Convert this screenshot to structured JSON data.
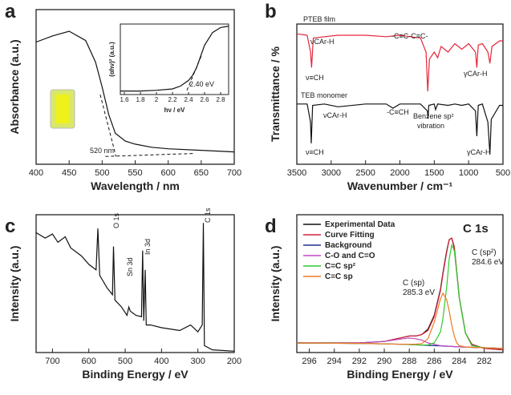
{
  "chart_data": [
    {
      "type": "line",
      "panel_label": "a",
      "xlabel": "Wavelength / nm",
      "ylabel": "Absorbance (a.u.)",
      "xlim": [
        400,
        700
      ],
      "ylim": [
        0,
        1
      ],
      "xticks": [
        400,
        450,
        500,
        550,
        600,
        650,
        700
      ],
      "series": [
        {
          "color": "#111111",
          "x": [
            400,
            425,
            450,
            475,
            490,
            500,
            510,
            520,
            535,
            550,
            575,
            600,
            650,
            700
          ],
          "values": [
            0.79,
            0.83,
            0.86,
            0.8,
            0.66,
            0.5,
            0.32,
            0.2,
            0.15,
            0.13,
            0.11,
            0.1,
            0.09,
            0.08
          ]
        }
      ],
      "guides": [
        {
          "x": [
            497,
            521
          ],
          "values": [
            0.45,
            0.05
          ]
        },
        {
          "x": [
            505,
            640
          ],
          "values": [
            0.05,
            0.07
          ]
        }
      ],
      "annotations": [
        "520 nm"
      ]
    },
    {
      "type": "line",
      "xlabel": "hν / eV",
      "ylabel": "(αhν)² (a.u.)",
      "xlim": [
        1.55,
        2.9
      ],
      "ylim": [
        0,
        1
      ],
      "xticks": [
        1.6,
        1.8,
        2.0,
        2.2,
        2.4,
        2.6,
        2.8
      ],
      "series": [
        {
          "color": "#111111",
          "x": [
            1.55,
            1.8,
            2.0,
            2.2,
            2.3,
            2.4,
            2.45,
            2.5,
            2.6,
            2.7,
            2.8,
            2.9
          ],
          "values": [
            0.05,
            0.05,
            0.06,
            0.08,
            0.12,
            0.2,
            0.27,
            0.38,
            0.7,
            0.88,
            0.95,
            0.97
          ]
        }
      ],
      "guides": [
        {
          "x": [
            2.38,
            2.56
          ],
          "values": [
            0.06,
            0.55
          ]
        }
      ],
      "annotations": [
        "2.40 eV"
      ]
    },
    {
      "type": "line",
      "panel_label": "b",
      "xlabel": "Wavenumber / cm⁻¹",
      "ylabel": "Transmittance / %",
      "xlim": [
        3500,
        500
      ],
      "ylim": [
        0,
        1
      ],
      "xticks": [
        3500,
        3000,
        2500,
        2000,
        1500,
        1000,
        500
      ],
      "series": [
        {
          "name": "PTEB film",
          "color": "#e8263a",
          "x": [
            3500,
            3350,
            3300,
            3285,
            3260,
            3100,
            2900,
            2500,
            2200,
            2000,
            1700,
            1620,
            1595,
            1570,
            1500,
            1450,
            1400,
            1300,
            1200,
            1100,
            1000,
            900,
            880,
            860,
            800,
            720,
            690,
            660,
            550,
            500
          ],
          "values": [
            0.93,
            0.92,
            0.8,
            0.69,
            0.9,
            0.91,
            0.92,
            0.92,
            0.91,
            0.92,
            0.9,
            0.8,
            0.52,
            0.75,
            0.8,
            0.76,
            0.84,
            0.8,
            0.86,
            0.82,
            0.86,
            0.8,
            0.69,
            0.85,
            0.86,
            0.8,
            0.72,
            0.84,
            0.88,
            0.88
          ]
        },
        {
          "name": "TEB monomer",
          "color": "#111111",
          "x": [
            3500,
            3350,
            3300,
            3290,
            3270,
            3100,
            2900,
            2500,
            2200,
            2100,
            2000,
            1700,
            1600,
            1590,
            1580,
            1500,
            1480,
            1450,
            1300,
            1200,
            1100,
            1000,
            900,
            880,
            860,
            800,
            720,
            690,
            670,
            550,
            500
          ],
          "values": [
            0.43,
            0.43,
            0.3,
            0.15,
            0.42,
            0.43,
            0.41,
            0.43,
            0.43,
            0.4,
            0.43,
            0.43,
            0.38,
            0.33,
            0.42,
            0.43,
            0.39,
            0.43,
            0.42,
            0.43,
            0.42,
            0.43,
            0.38,
            0.2,
            0.42,
            0.43,
            0.3,
            0.07,
            0.32,
            0.42,
            0.42
          ]
        }
      ],
      "legend": "inline",
      "annotations": [
        "νCAr-H",
        "ν≡CH",
        "-C≡C-C≡C-",
        "γCAr-H",
        "νCAr-H",
        "ν≡CH",
        "-C≡CH",
        "Benzene sp²",
        "vibration",
        "γCAr-H"
      ]
    },
    {
      "type": "line",
      "panel_label": "c",
      "xlabel": "Binding Energy / eV",
      "ylabel": "Intensity (a.u.)",
      "xlim": [
        745,
        200
      ],
      "ylim": [
        0,
        1
      ],
      "xticks": [
        700,
        600,
        500,
        400,
        300,
        200
      ],
      "series": [
        {
          "color": "#111111",
          "x": [
            745,
            720,
            700,
            685,
            665,
            650,
            620,
            600,
            580,
            575,
            570,
            550,
            535,
            532,
            528,
            510,
            495,
            490,
            486,
            470,
            455,
            452,
            449,
            445,
            442,
            430,
            400,
            350,
            320,
            300,
            288,
            285,
            282,
            260,
            200
          ],
          "values": [
            0.87,
            0.83,
            0.86,
            0.8,
            0.84,
            0.76,
            0.7,
            0.64,
            0.6,
            0.9,
            0.56,
            0.47,
            0.42,
            0.77,
            0.38,
            0.33,
            0.27,
            0.33,
            0.3,
            0.27,
            0.26,
            0.74,
            0.23,
            0.6,
            0.2,
            0.2,
            0.18,
            0.16,
            0.2,
            0.15,
            0.2,
            0.94,
            0.05,
            0.02,
            0.01
          ]
        }
      ],
      "annotations": [
        "O 1s",
        "Sn 3d",
        "In 3d",
        "C 1s"
      ]
    },
    {
      "type": "line",
      "panel_label": "d",
      "title": "C 1s",
      "xlabel": "Binding Energy / eV",
      "ylabel": "Intensity (a.u.)",
      "xlim": [
        297,
        280.5
      ],
      "ylim": [
        0,
        1
      ],
      "xticks": [
        296,
        294,
        292,
        290,
        288,
        286,
        284,
        282
      ],
      "x": [
        297,
        292,
        290,
        288.5,
        288,
        287.5,
        287,
        286.5,
        286,
        285.5,
        285.3,
        285,
        284.8,
        284.6,
        284.4,
        284.2,
        284,
        283.5,
        283,
        282,
        280.5
      ],
      "legend": "upper left",
      "series": [
        {
          "name": "Experimental Data",
          "color": "#111111",
          "values": [
            0.07,
            0.07,
            0.08,
            0.11,
            0.12,
            0.12,
            0.13,
            0.17,
            0.27,
            0.46,
            0.58,
            0.74,
            0.82,
            0.83,
            0.76,
            0.58,
            0.4,
            0.14,
            0.06,
            0.03,
            0.02
          ]
        },
        {
          "name": "Curve Fitting",
          "color": "#d0213a",
          "values": [
            0.07,
            0.07,
            0.08,
            0.11,
            0.12,
            0.12,
            0.13,
            0.16,
            0.26,
            0.45,
            0.57,
            0.73,
            0.82,
            0.83,
            0.77,
            0.59,
            0.4,
            0.14,
            0.06,
            0.03,
            0.02
          ]
        },
        {
          "name": "Background",
          "color": "#1f2f8f",
          "values": [
            0.07,
            0.066,
            0.063,
            0.06,
            0.058,
            0.056,
            0.054,
            0.052,
            0.05,
            0.048,
            0.047,
            0.046,
            0.045,
            0.044,
            0.043,
            0.042,
            0.041,
            0.04,
            0.038,
            0.035,
            0.03
          ]
        },
        {
          "name": "C-O and C=O",
          "color": "#c04ac0",
          "values": [
            0.07,
            0.07,
            0.08,
            0.1,
            0.105,
            0.1,
            0.09,
            0.07,
            0.06,
            0.05,
            0.049,
            0.047,
            0.045,
            0.044,
            0.043,
            0.042,
            0.041,
            0.04,
            0.038,
            0.035,
            0.03
          ]
        },
        {
          "name": "C=C sp²",
          "color": "#2ecc2e",
          "values": [
            0.07,
            0.066,
            0.063,
            0.06,
            0.058,
            0.056,
            0.054,
            0.055,
            0.07,
            0.15,
            0.25,
            0.48,
            0.68,
            0.78,
            0.74,
            0.58,
            0.4,
            0.14,
            0.05,
            0.035,
            0.03
          ]
        },
        {
          "name": "C≡C sp",
          "color": "#f07820",
          "values": [
            0.07,
            0.066,
            0.063,
            0.06,
            0.06,
            0.06,
            0.065,
            0.1,
            0.22,
            0.39,
            0.43,
            0.38,
            0.3,
            0.2,
            0.12,
            0.07,
            0.05,
            0.04,
            0.038,
            0.035,
            0.03
          ]
        }
      ],
      "annotations": [
        "C (sp²)",
        "284.6 eV",
        "C (sp)",
        "285.3 eV"
      ]
    }
  ]
}
